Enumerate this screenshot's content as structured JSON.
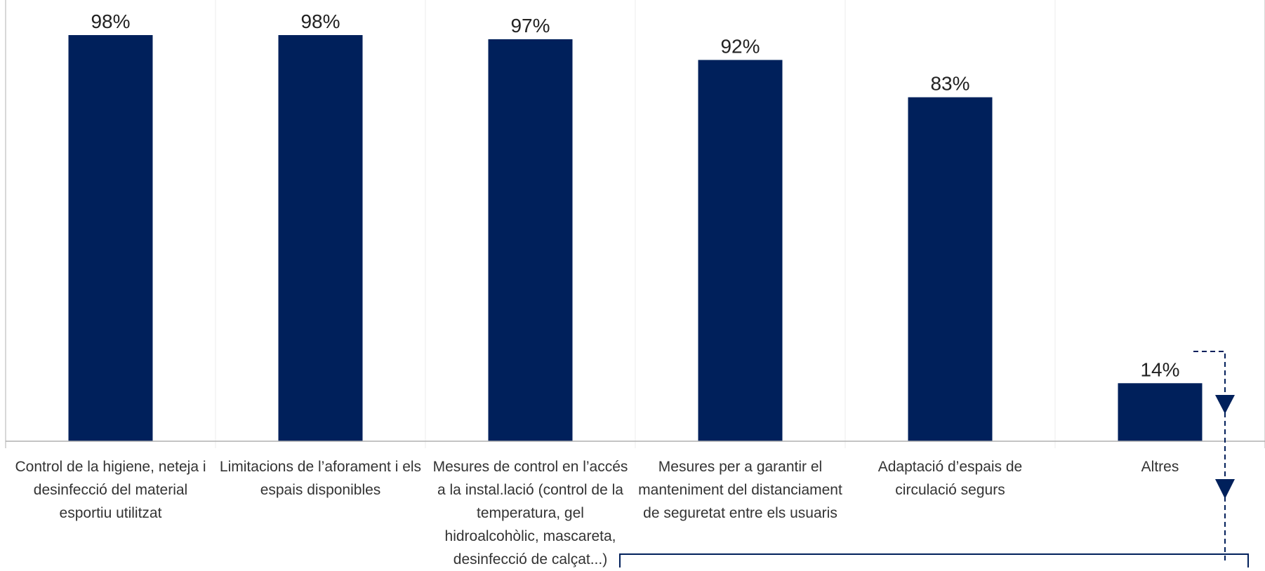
{
  "chart_data": {
    "type": "bar",
    "categories": [
      "Control de la higiene, neteja i desinfecció del material esportiu utilitzat",
      "Limitacions de l’aforament i els espais disponibles",
      "Mesures de control en l’accés a la instal.lació (control de la temperatura, gel hidroalcohòlic, mascareta, desinfecció de calçat...)",
      "Mesures per a garantir el manteniment del distanciament de seguretat entre els usuaris",
      "Adaptació d’espais de circulació segurs",
      "Altres"
    ],
    "values": [
      98,
      98,
      97,
      92,
      83,
      14
    ],
    "value_labels": [
      "98%",
      "98%",
      "97%",
      "92%",
      "83%",
      "14%"
    ],
    "ylim": [
      0,
      100
    ],
    "grid": false,
    "bar_color": "#00205B",
    "annotation_color": "#00205B"
  }
}
